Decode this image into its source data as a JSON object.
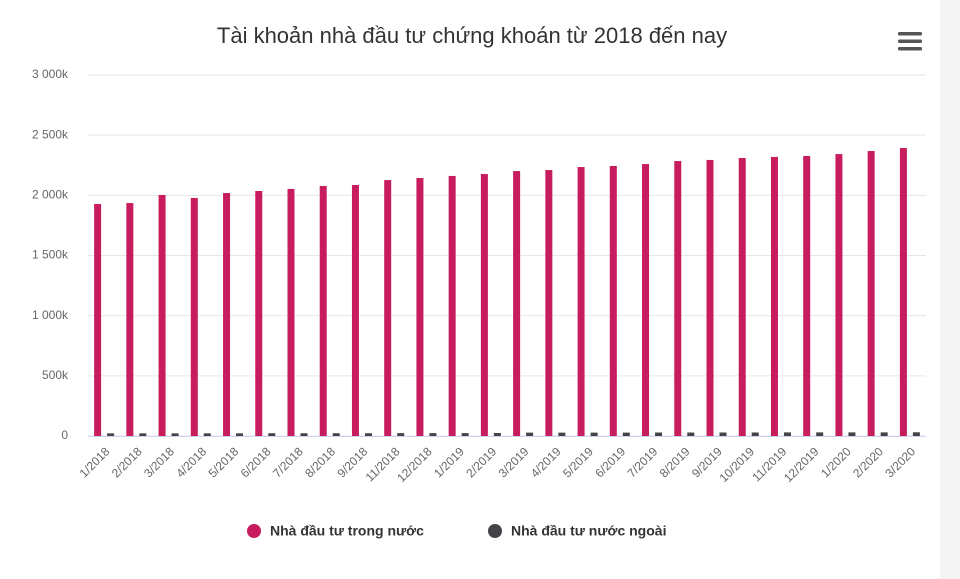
{
  "chart_data": {
    "type": "bar",
    "title": "Tài khoản nhà đầu tư chứng khoán từ 2018 đến nay",
    "categories": [
      "1/2018",
      "2/2018",
      "3/2018",
      "4/2018",
      "5/2018",
      "6/2018",
      "7/2018",
      "8/2018",
      "9/2018",
      "11/2018",
      "12/2018",
      "1/2019",
      "2/2019",
      "3/2019",
      "4/2019",
      "5/2019",
      "6/2019",
      "7/2019",
      "8/2019",
      "9/2019",
      "10/2019",
      "11/2019",
      "12/2019",
      "1/2020",
      "2/2020",
      "3/2020"
    ],
    "series": [
      {
        "name": "Nhà đầu tư trong nước",
        "color": "#c71c5e",
        "values": [
          1928,
          1936,
          2003,
          1978,
          2019,
          2036,
          2053,
          2078,
          2086,
          2127,
          2144,
          2161,
          2177,
          2202,
          2210,
          2235,
          2244,
          2260,
          2285,
          2294,
          2310,
          2319,
          2327,
          2343,
          2368,
          2393
        ]
      },
      {
        "name": "Nhà đầu tư nước ngoài",
        "color": "#434348",
        "values": [
          22,
          22,
          22,
          22,
          22,
          23,
          23,
          23,
          23,
          24,
          24,
          24,
          25,
          28,
          28,
          28,
          28,
          29,
          29,
          29,
          29,
          30,
          30,
          30,
          30,
          31
        ]
      }
    ],
    "ylim": [
      0,
      3000
    ],
    "yticks": [
      0,
      {
        "value": 500,
        "label": "500k"
      },
      {
        "value": 1000,
        "label": "1 000k"
      },
      {
        "value": 1500,
        "label": "1 500k"
      },
      {
        "value": 2000,
        "label": "2 000k"
      },
      {
        "value": 2500,
        "label": "2 500k"
      },
      {
        "value": 3000,
        "label": "3 000k"
      }
    ],
    "grid": true
  }
}
